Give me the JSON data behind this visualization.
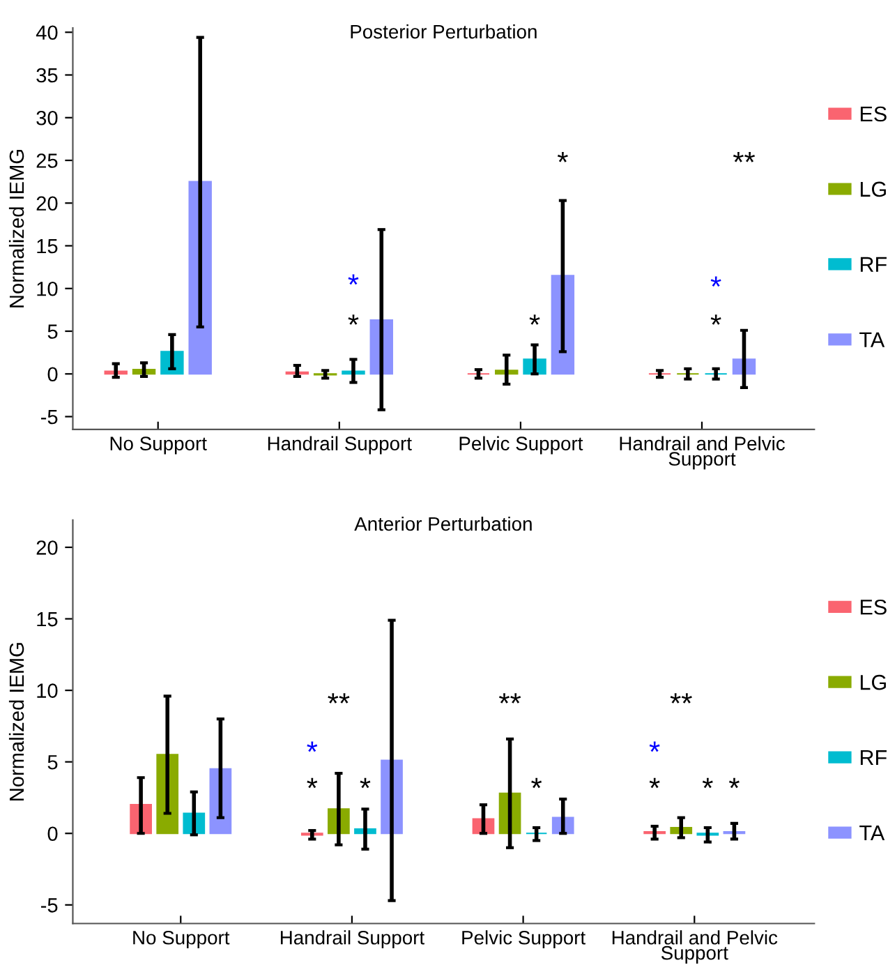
{
  "chart_data": [
    {
      "type": "bar",
      "title": "Posterior Perturbation",
      "ylabel": "Normalized IEMG",
      "categories": [
        "No Support",
        "Handrail Support",
        "Pelvic Support",
        "Handrail and Pelvic\nSupport"
      ],
      "series": [
        {
          "name": "ES",
          "color": "#fa6470",
          "values": [
            0.3,
            0.2,
            0.0,
            0.0
          ],
          "errors": [
            [
              -0.4,
              1.2
            ],
            [
              -0.3,
              1.0
            ],
            [
              -0.5,
              0.5
            ],
            [
              -0.4,
              0.4
            ]
          ]
        },
        {
          "name": "LG",
          "color": "#8aab00",
          "values": [
            0.5,
            -0.1,
            0.4,
            0.0
          ],
          "errors": [
            [
              -0.3,
              1.3
            ],
            [
              -0.5,
              0.4
            ],
            [
              -1.2,
              2.2
            ],
            [
              -0.6,
              0.6
            ]
          ]
        },
        {
          "name": "RF",
          "color": "#00bcd0",
          "values": [
            2.6,
            0.3,
            1.7,
            0.0
          ],
          "errors": [
            [
              0.6,
              4.6
            ],
            [
              -1.0,
              1.7
            ],
            [
              0.0,
              3.4
            ],
            [
              -0.6,
              0.6
            ]
          ]
        },
        {
          "name": "TA",
          "color": "#8c93ff",
          "values": [
            22.5,
            6.3,
            11.5,
            1.7
          ],
          "errors": [
            [
              5.5,
              39.4
            ],
            [
              -4.2,
              16.9
            ],
            [
              2.6,
              20.3
            ],
            [
              -1.6,
              5.1
            ]
          ]
        }
      ],
      "annotations": [
        "*",
        "*",
        "*",
        "*",
        "*",
        "*",
        "**"
      ],
      "ylim": [
        -6.5,
        40.5
      ],
      "yticks": [
        -5,
        0,
        5,
        10,
        15,
        20,
        25,
        30,
        35,
        40
      ],
      "legend": "right",
      "grid": false
    },
    {
      "type": "bar",
      "title": "Anterior Perturbation",
      "ylabel": "Normalized IEMG",
      "categories": [
        "No Support",
        "Handrail Support",
        "Pelvic Support",
        "Handrail and Pelvic\nSupport"
      ],
      "series": [
        {
          "name": "ES",
          "color": "#fa6470",
          "values": [
            2.0,
            -0.1,
            1.0,
            0.1
          ],
          "errors": [
            [
              0.0,
              3.9
            ],
            [
              -0.4,
              0.2
            ],
            [
              0.0,
              2.0
            ],
            [
              -0.4,
              0.5
            ]
          ]
        },
        {
          "name": "LG",
          "color": "#8aab00",
          "values": [
            5.5,
            1.7,
            2.8,
            0.4
          ],
          "errors": [
            [
              1.4,
              9.6
            ],
            [
              -0.8,
              4.2
            ],
            [
              -1.0,
              6.6
            ],
            [
              -0.3,
              1.1
            ]
          ]
        },
        {
          "name": "RF",
          "color": "#00bcd0",
          "values": [
            1.4,
            0.3,
            0.0,
            -0.1
          ],
          "errors": [
            [
              -0.1,
              2.9
            ],
            [
              -1.1,
              1.7
            ],
            [
              -0.5,
              0.4
            ],
            [
              -0.6,
              0.4
            ]
          ]
        },
        {
          "name": "TA",
          "color": "#8c93ff",
          "values": [
            4.5,
            5.1,
            1.1,
            0.1
          ],
          "errors": [
            [
              1.1,
              8.0
            ],
            [
              -4.7,
              14.9
            ],
            [
              0.0,
              2.4
            ],
            [
              -0.4,
              0.7
            ]
          ]
        }
      ],
      "annotations": [
        "*",
        "*",
        "**",
        "*",
        "**",
        "*",
        "*",
        "*",
        "**",
        "*",
        "*"
      ],
      "ylim": [
        -6.3,
        21.9
      ],
      "yticks": [
        -5,
        0,
        5,
        10,
        15,
        20
      ],
      "legend": "right",
      "grid": false
    }
  ]
}
